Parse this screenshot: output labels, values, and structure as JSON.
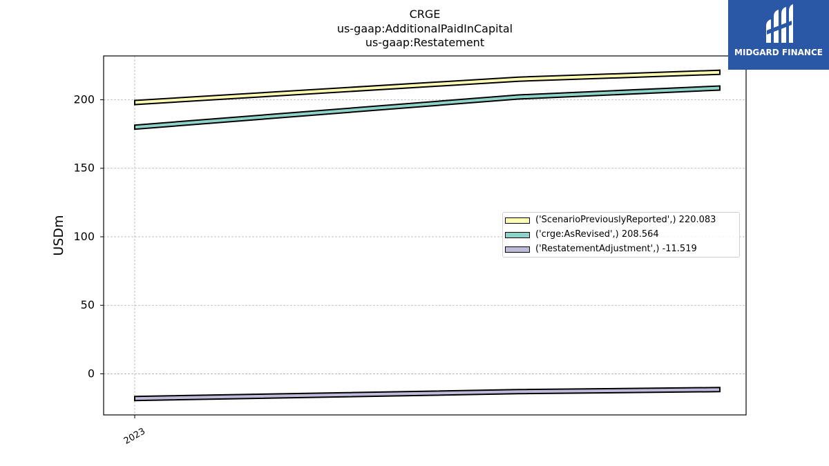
{
  "chart_data": {
    "type": "area",
    "title": "CRGE",
    "subtitle_lines": [
      "us-gaap:AdditionalPaidInCapital",
      "us-gaap:Restatement"
    ],
    "xlabel": "",
    "ylabel": "USDm",
    "x_tick_labels": [
      "2023"
    ],
    "ylim": [
      -30,
      232
    ],
    "y_ticks": [
      0,
      50,
      100,
      150,
      200
    ],
    "grid": true,
    "legend_position": "center-right",
    "series": [
      {
        "name": "('ScenarioPreviouslyReported',) 220.083",
        "color": "#ffffb3",
        "values": [
          198,
          215,
          220.083
        ]
      },
      {
        "name": "('crge:AsRevised',) 208.564",
        "color": "#8dd3c7",
        "values": [
          180,
          202,
          208.564
        ]
      },
      {
        "name": "('RestatementAdjustment',) -11.519",
        "color": "#bebada",
        "values": [
          -18,
          -13,
          -11.519
        ]
      }
    ]
  },
  "logo": {
    "text": "MIDGARD FINANCE"
  }
}
